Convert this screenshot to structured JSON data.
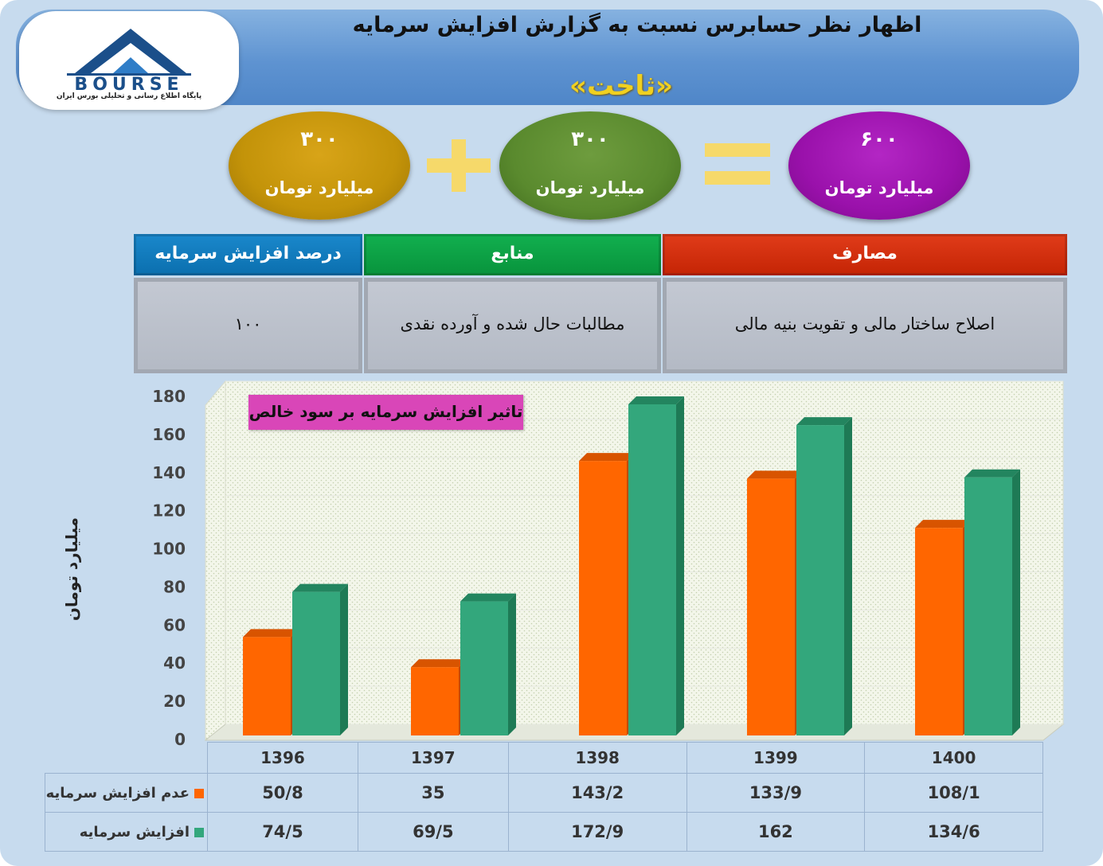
{
  "header": {
    "title": "اظهار نظر حسابرس نسبت به گزارش افزایش سرمایه",
    "symbol": "«ثاخت»"
  },
  "logo": {
    "text": "BOURSE",
    "tagline": "پایگاه اطلاع رسانی و تحلیلی بورس ایران"
  },
  "equation": {
    "operand_a": {
      "value": "۳۰۰",
      "unit": "میلیارد تومان",
      "color": "#c39309"
    },
    "operand_b": {
      "value": "۳۰۰",
      "unit": "میلیارد تومان",
      "color": "#5a8a2e"
    },
    "result": {
      "value": "۶۰۰",
      "unit": "میلیارد تومان",
      "color": "#9a11ab"
    }
  },
  "info_table": {
    "costs_header": "مصارف",
    "sources_header": "منابع",
    "percent_header": "درصد افزایش سرمایه",
    "costs_value": "اصلاح ساختار مالی و تقویت بنیه مالی",
    "sources_value": "مطالبات حال شده و آورده نقدی",
    "percent_value": "۱۰۰"
  },
  "chart_data": {
    "type": "bar",
    "title": "تاثیر افزایش سرمایه بر سود خالص",
    "ylabel": "میلیارد تومان",
    "xlabel": "",
    "ylim": [
      0,
      180
    ],
    "yticks": [
      "0",
      "20",
      "40",
      "60",
      "80",
      "100",
      "120",
      "140",
      "160",
      "180"
    ],
    "categories": [
      "1396",
      "1397",
      "1398",
      "1399",
      "1400"
    ],
    "series": [
      {
        "name": "عدم افزایش سرمایه",
        "values": [
          50.8,
          35,
          143.2,
          133.9,
          108.1
        ],
        "labels": [
          "50/8",
          "35",
          "143/2",
          "133/9",
          "108/1"
        ],
        "color": "#ff6600"
      },
      {
        "name": "افزایش سرمایه",
        "values": [
          74.5,
          69.5,
          172.9,
          162,
          134.6
        ],
        "labels": [
          "74/5",
          "69/5",
          "172/9",
          "162",
          "134/6"
        ],
        "color": "#33a77c"
      }
    ],
    "grid": true,
    "legend": "data-table"
  }
}
